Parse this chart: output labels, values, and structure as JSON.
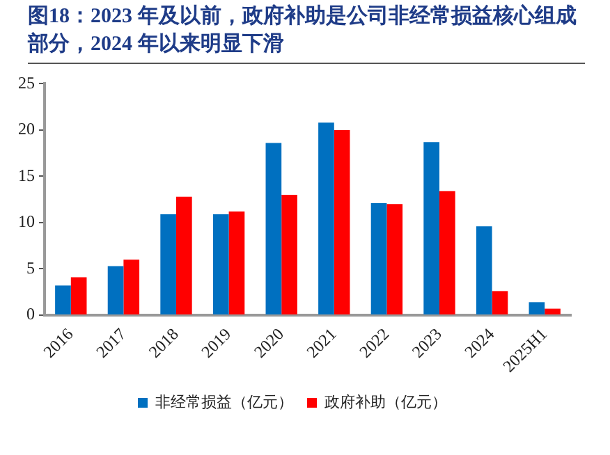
{
  "chart_data": {
    "type": "bar",
    "title": "图18：2023 年及以前，政府补助是公司非经常损益核心组成部分，2024 年以来明显下滑",
    "categories": [
      "2016",
      "2017",
      "2018",
      "2019",
      "2020",
      "2021",
      "2022",
      "2023",
      "2024",
      "2025H1"
    ],
    "series": [
      {
        "name": "非经常损益（亿元）",
        "color": "#0070c0",
        "values": [
          3.2,
          5.3,
          10.9,
          10.9,
          18.6,
          20.8,
          12.1,
          18.7,
          9.6,
          1.4
        ]
      },
      {
        "name": "政府补助（亿元）",
        "color": "#ff0000",
        "values": [
          4.1,
          6.0,
          12.8,
          11.2,
          13.0,
          20.0,
          12.0,
          13.4,
          2.6,
          0.7
        ]
      }
    ],
    "ylim": [
      0,
      25
    ],
    "yticks": [
      0,
      5,
      10,
      15,
      20,
      25
    ],
    "grid": false,
    "legend": "bottom"
  }
}
